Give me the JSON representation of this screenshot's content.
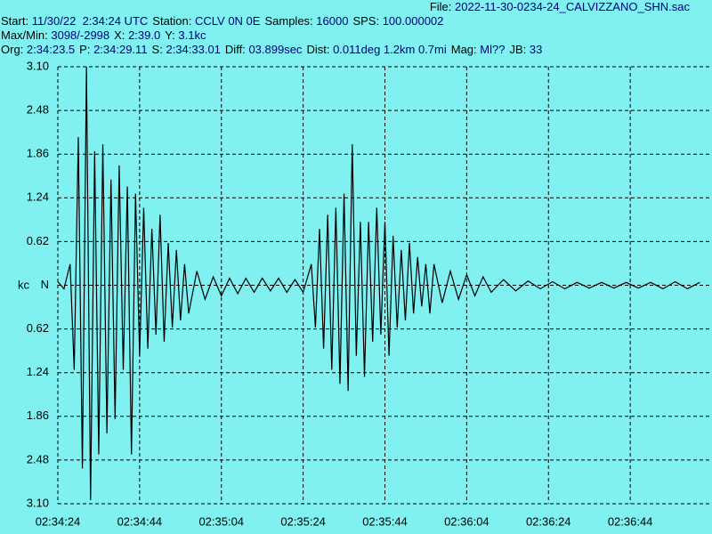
{
  "header": {
    "file": {
      "label": "File:",
      "value": "2022-11-30-0234-24_CALVIZZANO_SHN.sac"
    },
    "lines": [
      [
        {
          "label": "Start:",
          "value": "11/30/22  2:34:24 UTC"
        },
        {
          "label": "Station:",
          "value": "CCLV 0N 0E"
        },
        {
          "label": "Samples:",
          "value": "16000"
        },
        {
          "label": "SPS:",
          "value": "100.000002"
        }
      ],
      [
        {
          "label": "Max/Min:",
          "value": "3098/-2998"
        },
        {
          "label": "X:",
          "value": "2:39.0"
        },
        {
          "label": "Y:",
          "value": "3.1kc"
        }
      ],
      [
        {
          "label": "Org:",
          "value": "2:34:23.5"
        },
        {
          "label": "P:",
          "value": "2:34:29.11"
        },
        {
          "label": "S:",
          "value": "2:34:33.01"
        },
        {
          "label": "Diff:",
          "value": "03.899sec"
        },
        {
          "label": "Dist:",
          "value": "0.011deg 1.2km 0.7mi"
        },
        {
          "label": "Mag:",
          "value": "Ml??"
        },
        {
          "label": "JB:",
          "value": "33"
        }
      ]
    ]
  },
  "chart_data": {
    "type": "line",
    "y_label": "kc",
    "color": "#000000",
    "grid": true,
    "xlim": [
      9264,
      9424
    ],
    "ylim": [
      -3.1,
      3.1
    ],
    "xticks": [
      {
        "value": 9264,
        "label": "02:34:24"
      },
      {
        "value": 9284,
        "label": "02:34:44"
      },
      {
        "value": 9304,
        "label": "02:35:04"
      },
      {
        "value": 9324,
        "label": "02:35:24"
      },
      {
        "value": 9344,
        "label": "02:35:44"
      },
      {
        "value": 9364,
        "label": "02:36:04"
      },
      {
        "value": 9384,
        "label": "02:36:24"
      },
      {
        "value": 9404,
        "label": "02:36:44"
      }
    ],
    "yticks": [
      {
        "value": 3.1,
        "label": "3.10"
      },
      {
        "value": 2.48,
        "label": "2.48"
      },
      {
        "value": 1.86,
        "label": "1.86"
      },
      {
        "value": 1.24,
        "label": "1.24"
      },
      {
        "value": 0.62,
        "label": "0.62"
      },
      {
        "value": 0,
        "label": "N"
      },
      {
        "value": -0.62,
        "label": "0.62"
      },
      {
        "value": -1.24,
        "label": "1.24"
      },
      {
        "value": -1.86,
        "label": "1.86"
      },
      {
        "value": -2.48,
        "label": "2.48"
      },
      {
        "value": -3.1,
        "label": "3.10"
      }
    ],
    "x": [
      9264,
      9265.5,
      9267,
      9268,
      9269,
      9270,
      9271,
      9272,
      9273,
      9274,
      9275,
      9276,
      9277,
      9278,
      9279,
      9280,
      9281,
      9282,
      9283,
      9284,
      9285,
      9286,
      9287,
      9288,
      9289,
      9290,
      9291,
      9292,
      9293,
      9294,
      9295,
      9296,
      9298,
      9300,
      9302,
      9304,
      9306,
      9308,
      9310,
      9312,
      9314,
      9316,
      9318,
      9320,
      9322,
      9324,
      9326,
      9327,
      9328,
      9329,
      9330,
      9331,
      9332,
      9333,
      9334,
      9335,
      9336,
      9337,
      9338,
      9339,
      9340,
      9341,
      9342,
      9343,
      9344,
      9345,
      9346,
      9347,
      9348,
      9349,
      9350,
      9351,
      9352,
      9353,
      9354,
      9355,
      9356,
      9358,
      9360,
      9362,
      9364,
      9366,
      9368,
      9370,
      9373,
      9376,
      9379,
      9382,
      9385,
      9388,
      9391,
      9394,
      9397,
      9400,
      9403,
      9406,
      9409,
      9412,
      9415,
      9418,
      9421
    ],
    "values": [
      0.05,
      -0.05,
      0.3,
      -1.2,
      2.1,
      -2.6,
      3.1,
      -3.05,
      1.9,
      -2.4,
      2.0,
      -2.1,
      1.5,
      -1.9,
      1.7,
      -1.2,
      1.4,
      -2.4,
      1.3,
      -1.0,
      1.1,
      -0.9,
      0.8,
      -0.7,
      1.0,
      -0.8,
      0.6,
      -0.6,
      0.5,
      -0.5,
      0.3,
      -0.4,
      0.2,
      -0.2,
      0.12,
      -0.15,
      0.1,
      -0.12,
      0.1,
      -0.1,
      0.1,
      -0.08,
      0.1,
      -0.1,
      0.08,
      -0.1,
      0.3,
      -0.6,
      0.8,
      -0.9,
      1.0,
      -1.2,
      1.1,
      -1.4,
      1.3,
      -1.5,
      2.0,
      -1.0,
      0.9,
      -1.3,
      0.9,
      -0.8,
      1.1,
      -0.7,
      0.9,
      -1.0,
      0.7,
      -0.6,
      0.5,
      -0.5,
      0.6,
      -0.4,
      0.4,
      -0.3,
      0.3,
      -0.4,
      0.3,
      -0.25,
      0.2,
      -0.2,
      0.15,
      -0.15,
      0.12,
      -0.1,
      0.08,
      -0.08,
      0.06,
      -0.05,
      0.05,
      -0.05,
      0.04,
      -0.04,
      0.04,
      -0.04,
      0.04,
      -0.04,
      0.04,
      -0.05,
      0.05,
      -0.05,
      0.04
    ]
  }
}
